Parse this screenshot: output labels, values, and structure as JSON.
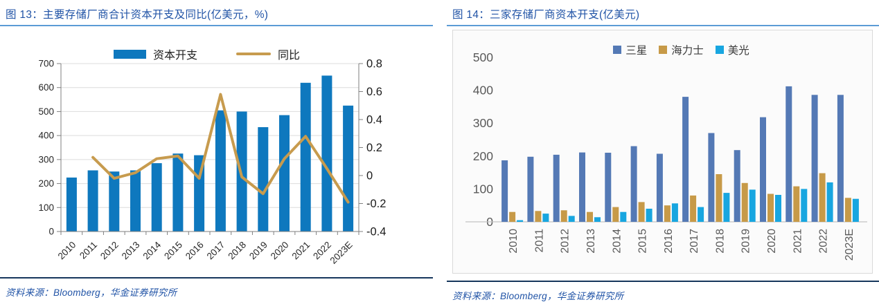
{
  "figures": [
    {
      "title": "图 13：主要存储厂商合计资本开支及同比(亿美元，%)",
      "source": "资料来源：Bloomberg，华金证券研究所"
    },
    {
      "title": "图 14：三家存储厂商资本开支(亿美元)",
      "source": "资料来源：Bloomberg，华金证券研究所"
    }
  ],
  "colors": {
    "title": "#2053A6",
    "title_rule": "#5B9BD5",
    "source_rule": "#16365C",
    "source": "#2053A6",
    "grid": "#DCDCDC",
    "axis": "#7F7F7F",
    "text_dark": "#262626",
    "text_gray": "#595959",
    "baseline": "#C3C3C3",
    "panel_border": "#D9D9D9",
    "panel_bg": "#FBFBFB"
  },
  "chart_data": [
    {
      "type": "bar",
      "subtype": "bar-line-combo",
      "title": "主要存储厂商合计资本开支及同比(亿美元，%)",
      "categories": [
        "2010",
        "2011",
        "2012",
        "2013",
        "2014",
        "2015",
        "2016",
        "2017",
        "2018",
        "2019",
        "2020",
        "2021",
        "2022",
        "2023E"
      ],
      "series": [
        {
          "name": "资本开支",
          "type": "bar",
          "axis": "left",
          "color": "#0E78BE",
          "values": [
            225,
            255,
            250,
            255,
            285,
            325,
            318,
            505,
            500,
            435,
            485,
            620,
            650,
            525
          ]
        },
        {
          "name": "同比",
          "type": "line",
          "axis": "right",
          "color": "#C79B4E",
          "values": [
            null,
            0.13,
            -0.02,
            0.02,
            0.12,
            0.14,
            -0.02,
            0.58,
            -0.01,
            -0.13,
            0.12,
            0.28,
            0.05,
            -0.19
          ]
        }
      ],
      "left_axis": {
        "min": 0,
        "max": 700,
        "step": 100
      },
      "right_axis": {
        "min": -0.4,
        "max": 0.8,
        "step": 0.2
      },
      "grid": true,
      "legend_position": "top"
    },
    {
      "type": "bar",
      "subtype": "grouped",
      "title": "三家存储厂商资本开支(亿美元)",
      "categories": [
        "2010",
        "2011",
        "2012",
        "2013",
        "2014",
        "2015",
        "2016",
        "2017",
        "2018",
        "2019",
        "2020",
        "2021",
        "2022",
        "2023E"
      ],
      "series": [
        {
          "name": "三星",
          "color": "#5479B5",
          "values": [
            187,
            198,
            204,
            211,
            210,
            230,
            207,
            380,
            270,
            218,
            318,
            412,
            386,
            386
          ]
        },
        {
          "name": "海力士",
          "color": "#C79A48",
          "values": [
            30,
            33,
            35,
            30,
            45,
            60,
            50,
            80,
            145,
            118,
            85,
            108,
            148,
            73
          ]
        },
        {
          "name": "美光",
          "color": "#18A6E0",
          "values": [
            5,
            25,
            18,
            14,
            30,
            40,
            56,
            45,
            88,
            98,
            82,
            100,
            120,
            70
          ]
        }
      ],
      "y_axis": {
        "min": 0,
        "max": 500,
        "step": 100
      },
      "grid": false,
      "legend_position": "top"
    }
  ]
}
